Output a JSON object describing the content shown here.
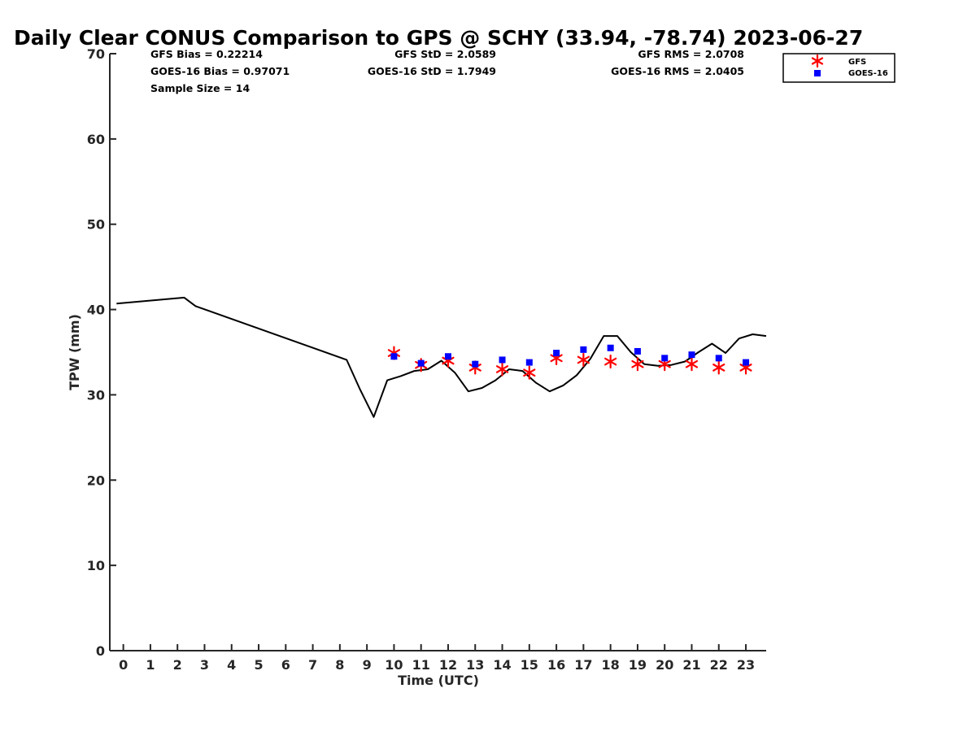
{
  "chart_data": {
    "type": "line",
    "title": "Daily Clear CONUS Comparison to GPS @ SCHY (33.94, -78.74) 2023-06-27",
    "xlabel": "Time (UTC)",
    "ylabel": "TPW (mm)",
    "xlim": [
      -0.5,
      23.75
    ],
    "ylim": [
      0,
      70
    ],
    "x_ticks": [
      0,
      1,
      2,
      3,
      4,
      5,
      6,
      7,
      8,
      9,
      10,
      11,
      12,
      13,
      14,
      15,
      16,
      17,
      18,
      19,
      20,
      21,
      22,
      23
    ],
    "y_ticks": [
      0,
      10,
      20,
      30,
      40,
      50,
      60,
      70
    ],
    "grid": false,
    "legend_position": "top-right outside",
    "stats": {
      "gfs_bias": "GFS Bias = 0.22214",
      "goes_bias": "GOES-16 Bias = 0.97071",
      "sample_size": "Sample Size = 14",
      "gfs_std": "GFS StD = 2.0589",
      "goes_std": "GOES-16 StD = 1.7949",
      "gfs_rms": "GFS RMS = 2.0708",
      "goes_rms": "GOES-16 RMS = 2.0405"
    },
    "series": [
      {
        "kind": "line",
        "color": "#000000",
        "x": [
          -0.25,
          2.25,
          2.67,
          8.25,
          8.75,
          9.25,
          9.75,
          10.25,
          10.75,
          11.25,
          11.75,
          12.25,
          12.75,
          13.25,
          13.75,
          14.25,
          14.75,
          15.25,
          15.75,
          16.25,
          16.75,
          17.25,
          17.75,
          18.25,
          18.75,
          19.25,
          19.75,
          20.25,
          20.75,
          21.25,
          21.75,
          22.25,
          22.75,
          23.25,
          23.75
        ],
        "y": [
          40.7,
          41.4,
          40.4,
          34.1,
          30.6,
          27.4,
          31.7,
          32.2,
          32.8,
          33.0,
          34.0,
          32.6,
          30.4,
          30.8,
          31.7,
          33.0,
          32.8,
          31.4,
          30.4,
          31.1,
          32.3,
          34.2,
          36.9,
          36.9,
          35.0,
          33.6,
          33.4,
          33.5,
          33.9,
          35.0,
          36.0,
          34.9,
          36.6,
          37.1,
          36.9
        ]
      },
      {
        "name": "GFS",
        "kind": "marker",
        "marker": "asterisk",
        "color": "#ff0000",
        "x": [
          10,
          11,
          12,
          13,
          14,
          15,
          16,
          17,
          18,
          19,
          20,
          21,
          22,
          23
        ],
        "y": [
          34.9,
          33.5,
          34.0,
          33.2,
          33.0,
          32.6,
          34.3,
          34.1,
          33.9,
          33.6,
          33.6,
          33.6,
          33.2,
          33.2
        ]
      },
      {
        "name": "GOES-16",
        "kind": "marker",
        "marker": "square",
        "color": "#0000ff",
        "x": [
          10,
          11,
          12,
          13,
          14,
          15,
          16,
          17,
          18,
          19,
          20,
          21,
          22,
          23
        ],
        "y": [
          34.5,
          33.7,
          34.5,
          33.6,
          34.1,
          33.8,
          34.9,
          35.3,
          35.5,
          35.1,
          34.3,
          34.7,
          34.3,
          33.8
        ]
      }
    ]
  }
}
